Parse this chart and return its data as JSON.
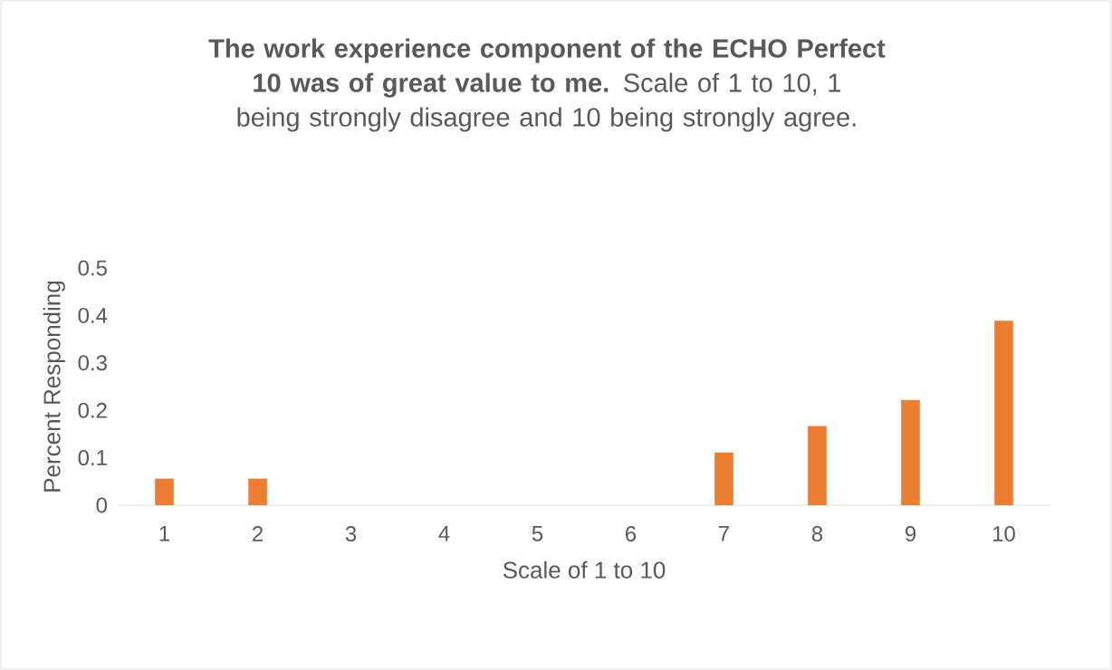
{
  "chart_data": {
    "type": "bar",
    "title": "**The work experience component of the ECHO Perfect 10 was of great value to me.**  Scale of 1 to 10, 1 being strongly disagree and 10 being strongly agree.",
    "categories": [
      "1",
      "2",
      "3",
      "4",
      "5",
      "6",
      "7",
      "8",
      "9",
      "10"
    ],
    "values": [
      0.056,
      0.056,
      0,
      0,
      0,
      0,
      0.111,
      0.167,
      0.222,
      0.389
    ],
    "color": "#ed7d31",
    "xlabel": "Scale of 1 to 10",
    "ylabel": "Percent Responding",
    "ylim": [
      0,
      0.5
    ],
    "yticks": [
      0,
      0.1,
      0.2,
      0.3,
      0.4,
      0.5
    ]
  }
}
